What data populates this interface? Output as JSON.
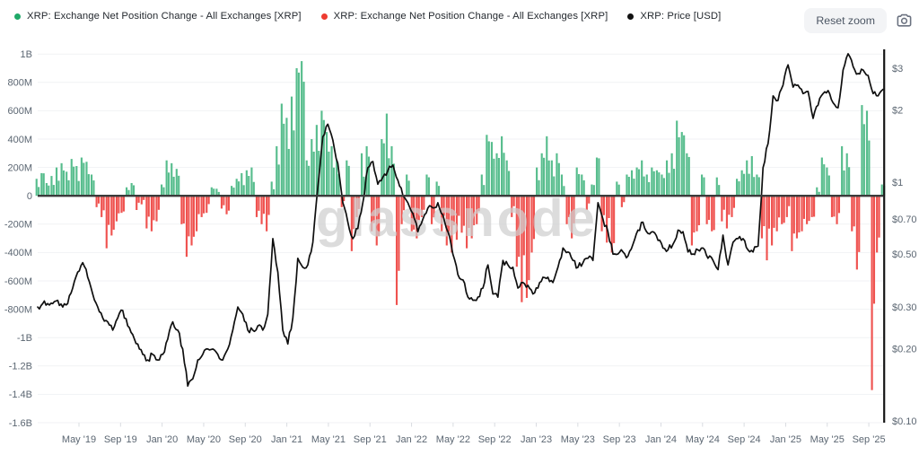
{
  "header": {
    "legend": [
      {
        "label": "XRP: Exchange Net Position Change - All Exchanges [XRP]",
        "dot_color": "#1fa968",
        "series": "netflow-positive"
      },
      {
        "label": "XRP: Exchange Net Position Change - All Exchanges [XRP]",
        "dot_color": "#ee3b30",
        "series": "netflow-negative"
      },
      {
        "label": "XRP: Price [USD]",
        "dot_color": "#111111",
        "series": "price"
      }
    ],
    "reset_zoom_label": "Reset zoom",
    "camera_icon": "camera-icon"
  },
  "watermark": "glassnode",
  "colors": {
    "bar_positive": "#57bd8d",
    "bar_negative": "#ef5350",
    "price_line": "#0f0f0f",
    "zero_line": "#3b3b3b",
    "grid_line": "#f1f2f4",
    "axis_text": "#5b6672",
    "right_axis_line": "#161616",
    "background": "#ffffff"
  },
  "chart_data": {
    "type": "bar",
    "subtype": "bar+line dual-axis",
    "title": "XRP: Exchange Net Position Change - All Exchanges [XRP] with XRP Price [USD]",
    "x_start": "2019-02",
    "x_end": "2025-11",
    "sample_interval_days": 14,
    "x_tick_labels": [
      "May '19",
      "Sep '19",
      "Jan '20",
      "May '20",
      "Sep '20",
      "Jan '21",
      "May '21",
      "Sep '21",
      "Jan '22",
      "May '22",
      "Sep '22",
      "Jan '23",
      "May '23",
      "Sep '23",
      "Jan '24",
      "May '24",
      "Sep '24",
      "Jan '25",
      "May '25",
      "Sep '25"
    ],
    "left_axis": {
      "title": "Exchange Net Position Change [XRP]",
      "labels": [
        "1B",
        "800M",
        "600M",
        "400M",
        "200M",
        "0",
        "-200M",
        "-400M",
        "-600M",
        "-800M",
        "-1B",
        "-1.2B",
        "-1.4B",
        "-1.6B"
      ],
      "values_million": [
        1000,
        800,
        600,
        400,
        200,
        0,
        -200,
        -400,
        -600,
        -800,
        -1000,
        -1200,
        -1400,
        -1600
      ],
      "scale": "linear",
      "grid": true
    },
    "right_axis": {
      "title": "Price [USD]",
      "labels": [
        "$3",
        "$2",
        "$1",
        "$0.70",
        "$0.50",
        "$0.30",
        "$0.20",
        "$0.10"
      ],
      "values_usd": [
        3,
        2,
        1,
        0.7,
        0.5,
        0.3,
        0.2,
        0.1
      ],
      "scale": "log"
    },
    "legend_position": "top-left",
    "series": [
      {
        "name": "XRP: Exchange Net Position Change - All Exchanges [XRP]",
        "type": "bar",
        "axis": "left",
        "unit": "XRP (millions)",
        "values_million": [
          120,
          160,
          90,
          140,
          200,
          230,
          170,
          260,
          210,
          270,
          240,
          150,
          -80,
          -150,
          -370,
          -280,
          -180,
          -120,
          60,
          90,
          -100,
          -60,
          -230,
          -250,
          -180,
          80,
          250,
          230,
          190,
          -200,
          -430,
          -350,
          -250,
          -150,
          -120,
          60,
          50,
          -90,
          -130,
          70,
          120,
          160,
          180,
          200,
          -150,
          -200,
          -250,
          100,
          350,
          650,
          550,
          700,
          900,
          950,
          250,
          400,
          500,
          600,
          450,
          350,
          250,
          -80,
          250,
          -390,
          -150,
          300,
          350,
          -250,
          -350,
          400,
          580,
          350,
          -770,
          -200,
          150,
          -250,
          -300,
          -150,
          150,
          -200,
          100,
          -250,
          -350,
          -400,
          -310,
          -260,
          -370,
          -300,
          -200,
          150,
          430,
          380,
          300,
          420,
          250,
          -150,
          -500,
          -750,
          -720,
          -400,
          200,
          300,
          420,
          250,
          300,
          150,
          -200,
          -300,
          200,
          150,
          -100,
          80,
          270,
          -250,
          -330,
          -400,
          100,
          -80,
          150,
          180,
          200,
          250,
          150,
          200,
          180,
          150,
          250,
          300,
          530,
          450,
          300,
          -350,
          -250,
          150,
          -200,
          -250,
          130,
          -180,
          -230,
          -150,
          120,
          180,
          250,
          280,
          150,
          -300,
          -455,
          -350,
          -250,
          -200,
          -150,
          -390,
          -300,
          -250,
          -200,
          -150,
          60,
          270,
          200,
          -150,
          -200,
          350,
          300,
          -250,
          -520,
          640,
          600,
          -1370,
          -400,
          80
        ]
      },
      {
        "name": "XRP: Price [USD]",
        "type": "line",
        "axis": "right",
        "unit": "USD",
        "values_usd": [
          0.3,
          0.31,
          0.31,
          0.31,
          0.32,
          0.3,
          0.31,
          0.36,
          0.42,
          0.46,
          0.4,
          0.34,
          0.3,
          0.27,
          0.26,
          0.24,
          0.27,
          0.29,
          0.25,
          0.23,
          0.21,
          0.19,
          0.18,
          0.19,
          0.18,
          0.19,
          0.22,
          0.26,
          0.24,
          0.2,
          0.14,
          0.15,
          0.18,
          0.19,
          0.2,
          0.2,
          0.19,
          0.18,
          0.2,
          0.24,
          0.3,
          0.28,
          0.24,
          0.24,
          0.25,
          0.24,
          0.28,
          0.58,
          0.42,
          0.24,
          0.21,
          0.27,
          0.48,
          0.44,
          0.45,
          0.56,
          0.95,
          1.55,
          1.75,
          1.5,
          1.2,
          0.82,
          0.68,
          0.58,
          0.64,
          0.82,
          1.15,
          1.22,
          0.98,
          1.05,
          1.12,
          1.18,
          1.02,
          0.88,
          0.82,
          0.74,
          0.62,
          0.7,
          0.78,
          0.78,
          0.82,
          0.73,
          0.62,
          0.5,
          0.41,
          0.39,
          0.33,
          0.32,
          0.33,
          0.36,
          0.45,
          0.34,
          0.33,
          0.47,
          0.45,
          0.44,
          0.36,
          0.38,
          0.37,
          0.34,
          0.36,
          0.4,
          0.4,
          0.38,
          0.44,
          0.53,
          0.51,
          0.47,
          0.44,
          0.46,
          0.48,
          0.47,
          0.82,
          0.7,
          0.62,
          0.5,
          0.5,
          0.51,
          0.49,
          0.55,
          0.63,
          0.68,
          0.61,
          0.62,
          0.57,
          0.53,
          0.52,
          0.55,
          0.63,
          0.62,
          0.51,
          0.5,
          0.52,
          0.53,
          0.48,
          0.47,
          0.43,
          0.6,
          0.45,
          0.56,
          0.58,
          0.58,
          0.52,
          0.51,
          0.54,
          1.15,
          1.45,
          2.3,
          2.2,
          2.55,
          3.1,
          2.5,
          2.55,
          2.35,
          2.4,
          1.85,
          2.1,
          2.35,
          2.42,
          2.15,
          2.05,
          2.95,
          3.45,
          3.05,
          2.85,
          2.95,
          2.8,
          2.35,
          2.3,
          2.45
        ]
      }
    ]
  }
}
